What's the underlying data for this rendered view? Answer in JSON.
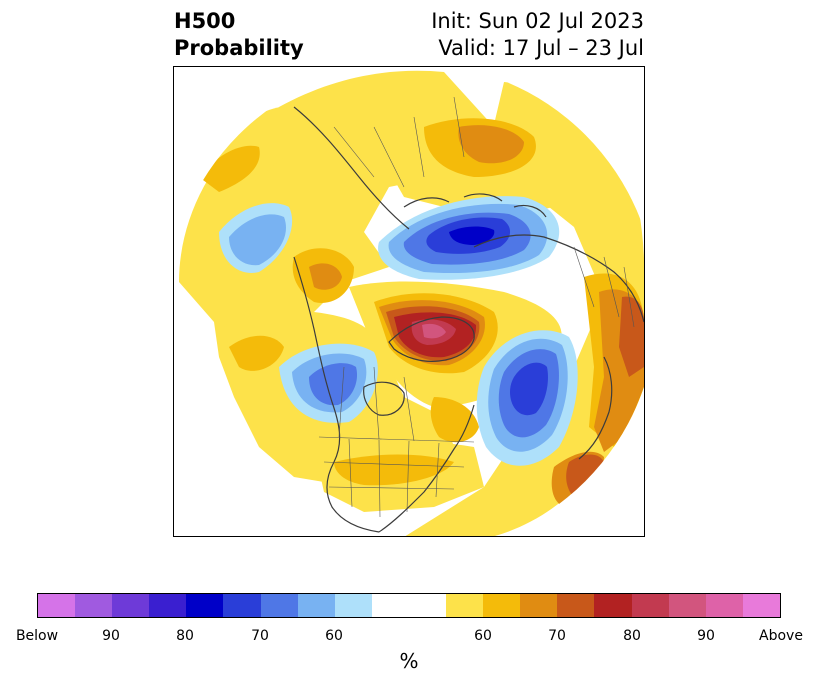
{
  "title": {
    "left_line1": "H500",
    "left_line2": "Probability",
    "init": "Init: Sun 02 Jul 2023",
    "valid": "Valid: 17 Jul – 23 Jul"
  },
  "colorbar": {
    "unit": "%",
    "colors": [
      "#d573e8",
      "#a05ae0",
      "#6e3ad8",
      "#3a1fd0",
      "#0000c8",
      "#2a3ed8",
      "#4f77e6",
      "#78b2f2",
      "#aee0fa",
      "#ffffff",
      "#ffffff",
      "#fde24a",
      "#f4bb0a",
      "#e08c12",
      "#c8581a",
      "#b22222",
      "#c23a50",
      "#d2557e",
      "#de62a8",
      "#e87ada"
    ],
    "tick_labels": [
      "Below",
      "90",
      "80",
      "70",
      "60",
      "60",
      "70",
      "80",
      "90",
      "Above"
    ]
  },
  "map": {
    "colors": {
      "blue_light": "#aee0fa",
      "blue_mid": "#78b2f2",
      "blue": "#4f77e6",
      "blue_dark": "#2a3ed8",
      "blue_deep": "#0000c8",
      "yellow": "#fde24a",
      "gold": "#f4bb0a",
      "orange": "#e08c12",
      "orange_dark": "#c8581a",
      "red": "#b22222",
      "rose": "#c23a50",
      "pink": "#d2557e"
    }
  }
}
